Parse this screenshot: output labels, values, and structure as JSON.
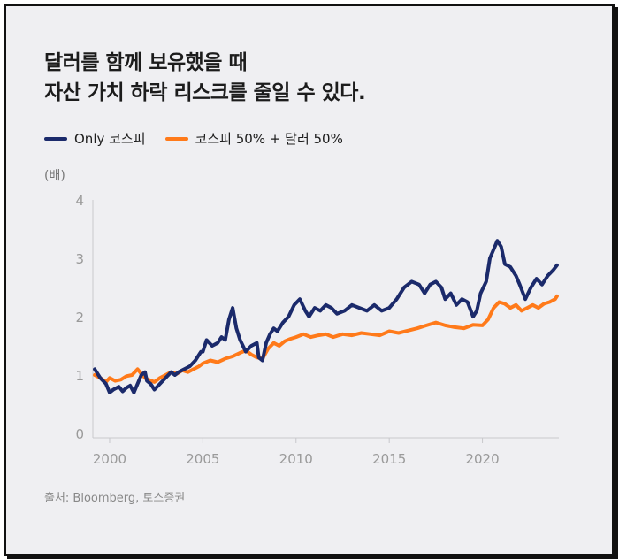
{
  "header": {
    "title_line1": "달러를 함께 보유했을 때",
    "title_line2": "자산 가치 하락 리스크를 줄일 수 있다."
  },
  "legend": [
    {
      "label": "Only 코스피",
      "color": "#1b2a6b"
    },
    {
      "label": "코스피 50% + 달러 50%",
      "color": "#ff7a1a"
    }
  ],
  "unit_label": "(배)",
  "source": "출처: Bloomberg, 토스증권",
  "chart_data": {
    "type": "line",
    "title": "달러를 함께 보유했을 때 자산 가치 하락 리스크를 줄일 수 있다.",
    "ylabel": "(배)",
    "xlabel": "",
    "xlim": [
      1999.1,
      2024.1
    ],
    "ylim": [
      0,
      4
    ],
    "x_ticks": [
      2000,
      2005,
      2010,
      2015,
      2020
    ],
    "y_ticks": [
      0,
      1,
      2,
      3,
      4
    ],
    "series": [
      {
        "name": "Only 코스피",
        "color": "#1b2a6b",
        "x": [
          1999.2,
          1999.5,
          1999.8,
          2000.0,
          2000.2,
          2000.5,
          2000.7,
          2000.9,
          2001.1,
          2001.3,
          2001.5,
          2001.7,
          2001.9,
          2002.0,
          2002.2,
          2002.4,
          2002.7,
          2003.0,
          2003.3,
          2003.5,
          2003.7,
          2004.0,
          2004.3,
          2004.6,
          2004.9,
          2005.0,
          2005.2,
          2005.5,
          2005.8,
          2006.0,
          2006.2,
          2006.4,
          2006.6,
          2006.8,
          2007.0,
          2007.3,
          2007.6,
          2007.9,
          2008.0,
          2008.2,
          2008.4,
          2008.6,
          2008.8,
          2009.0,
          2009.3,
          2009.6,
          2009.9,
          2010.2,
          2010.5,
          2010.7,
          2011.0,
          2011.3,
          2011.6,
          2011.9,
          2012.2,
          2012.6,
          2013.0,
          2013.4,
          2013.8,
          2014.2,
          2014.6,
          2015.0,
          2015.4,
          2015.8,
          2016.2,
          2016.6,
          2016.9,
          2017.2,
          2017.5,
          2017.8,
          2018.0,
          2018.3,
          2018.6,
          2018.9,
          2019.2,
          2019.5,
          2019.7,
          2019.9,
          2020.2,
          2020.4,
          2020.6,
          2020.8,
          2021.0,
          2021.2,
          2021.5,
          2021.8,
          2022.0,
          2022.3,
          2022.6,
          2022.9,
          2023.2,
          2023.5,
          2023.8,
          2024.0
        ],
        "values": [
          1.1,
          0.95,
          0.85,
          0.7,
          0.75,
          0.8,
          0.72,
          0.78,
          0.82,
          0.7,
          0.85,
          1.0,
          1.05,
          0.9,
          0.85,
          0.75,
          0.85,
          0.95,
          1.05,
          1.0,
          1.05,
          1.1,
          1.15,
          1.25,
          1.4,
          1.4,
          1.6,
          1.5,
          1.55,
          1.65,
          1.6,
          1.95,
          2.15,
          1.8,
          1.6,
          1.4,
          1.5,
          1.55,
          1.3,
          1.25,
          1.55,
          1.7,
          1.8,
          1.75,
          1.9,
          2.0,
          2.2,
          2.3,
          2.1,
          2.0,
          2.15,
          2.1,
          2.2,
          2.15,
          2.05,
          2.1,
          2.2,
          2.15,
          2.1,
          2.2,
          2.1,
          2.15,
          2.3,
          2.5,
          2.6,
          2.55,
          2.4,
          2.55,
          2.6,
          2.5,
          2.3,
          2.4,
          2.2,
          2.3,
          2.25,
          2.0,
          2.1,
          2.4,
          2.6,
          3.0,
          3.15,
          3.3,
          3.2,
          2.9,
          2.85,
          2.7,
          2.55,
          2.3,
          2.5,
          2.65,
          2.55,
          2.7,
          2.8,
          2.88
        ]
      },
      {
        "name": "코스피 50% + 달러 50%",
        "color": "#ff7a1a",
        "x": [
          1999.2,
          1999.5,
          1999.8,
          2000.0,
          2000.3,
          2000.6,
          2000.9,
          2001.2,
          2001.5,
          2001.7,
          2001.9,
          2002.1,
          2002.4,
          2002.7,
          2003.0,
          2003.3,
          2003.6,
          2003.9,
          2004.2,
          2004.5,
          2004.8,
          2005.0,
          2005.4,
          2005.8,
          2006.2,
          2006.6,
          2007.0,
          2007.3,
          2007.6,
          2007.9,
          2008.2,
          2008.5,
          2008.8,
          2009.1,
          2009.4,
          2009.7,
          2010.0,
          2010.4,
          2010.8,
          2011.2,
          2011.6,
          2012.0,
          2012.5,
          2013.0,
          2013.5,
          2014.0,
          2014.5,
          2015.0,
          2015.5,
          2016.0,
          2016.5,
          2017.0,
          2017.5,
          2018.0,
          2018.5,
          2019.0,
          2019.5,
          2020.0,
          2020.3,
          2020.6,
          2020.9,
          2021.2,
          2021.5,
          2021.8,
          2022.1,
          2022.4,
          2022.7,
          2023.0,
          2023.3,
          2023.6,
          2023.9,
          2024.0
        ],
        "values": [
          1.0,
          0.95,
          0.88,
          0.95,
          0.9,
          0.92,
          0.98,
          1.0,
          1.1,
          1.02,
          0.95,
          0.92,
          0.88,
          0.95,
          1.0,
          1.05,
          1.02,
          1.08,
          1.05,
          1.1,
          1.15,
          1.2,
          1.25,
          1.22,
          1.28,
          1.32,
          1.38,
          1.42,
          1.35,
          1.3,
          1.28,
          1.45,
          1.55,
          1.5,
          1.58,
          1.62,
          1.65,
          1.7,
          1.65,
          1.68,
          1.7,
          1.65,
          1.7,
          1.68,
          1.72,
          1.7,
          1.68,
          1.75,
          1.72,
          1.76,
          1.8,
          1.85,
          1.9,
          1.85,
          1.82,
          1.8,
          1.86,
          1.85,
          1.95,
          2.15,
          2.25,
          2.22,
          2.15,
          2.2,
          2.1,
          2.15,
          2.2,
          2.15,
          2.22,
          2.25,
          2.3,
          2.35
        ]
      }
    ]
  }
}
